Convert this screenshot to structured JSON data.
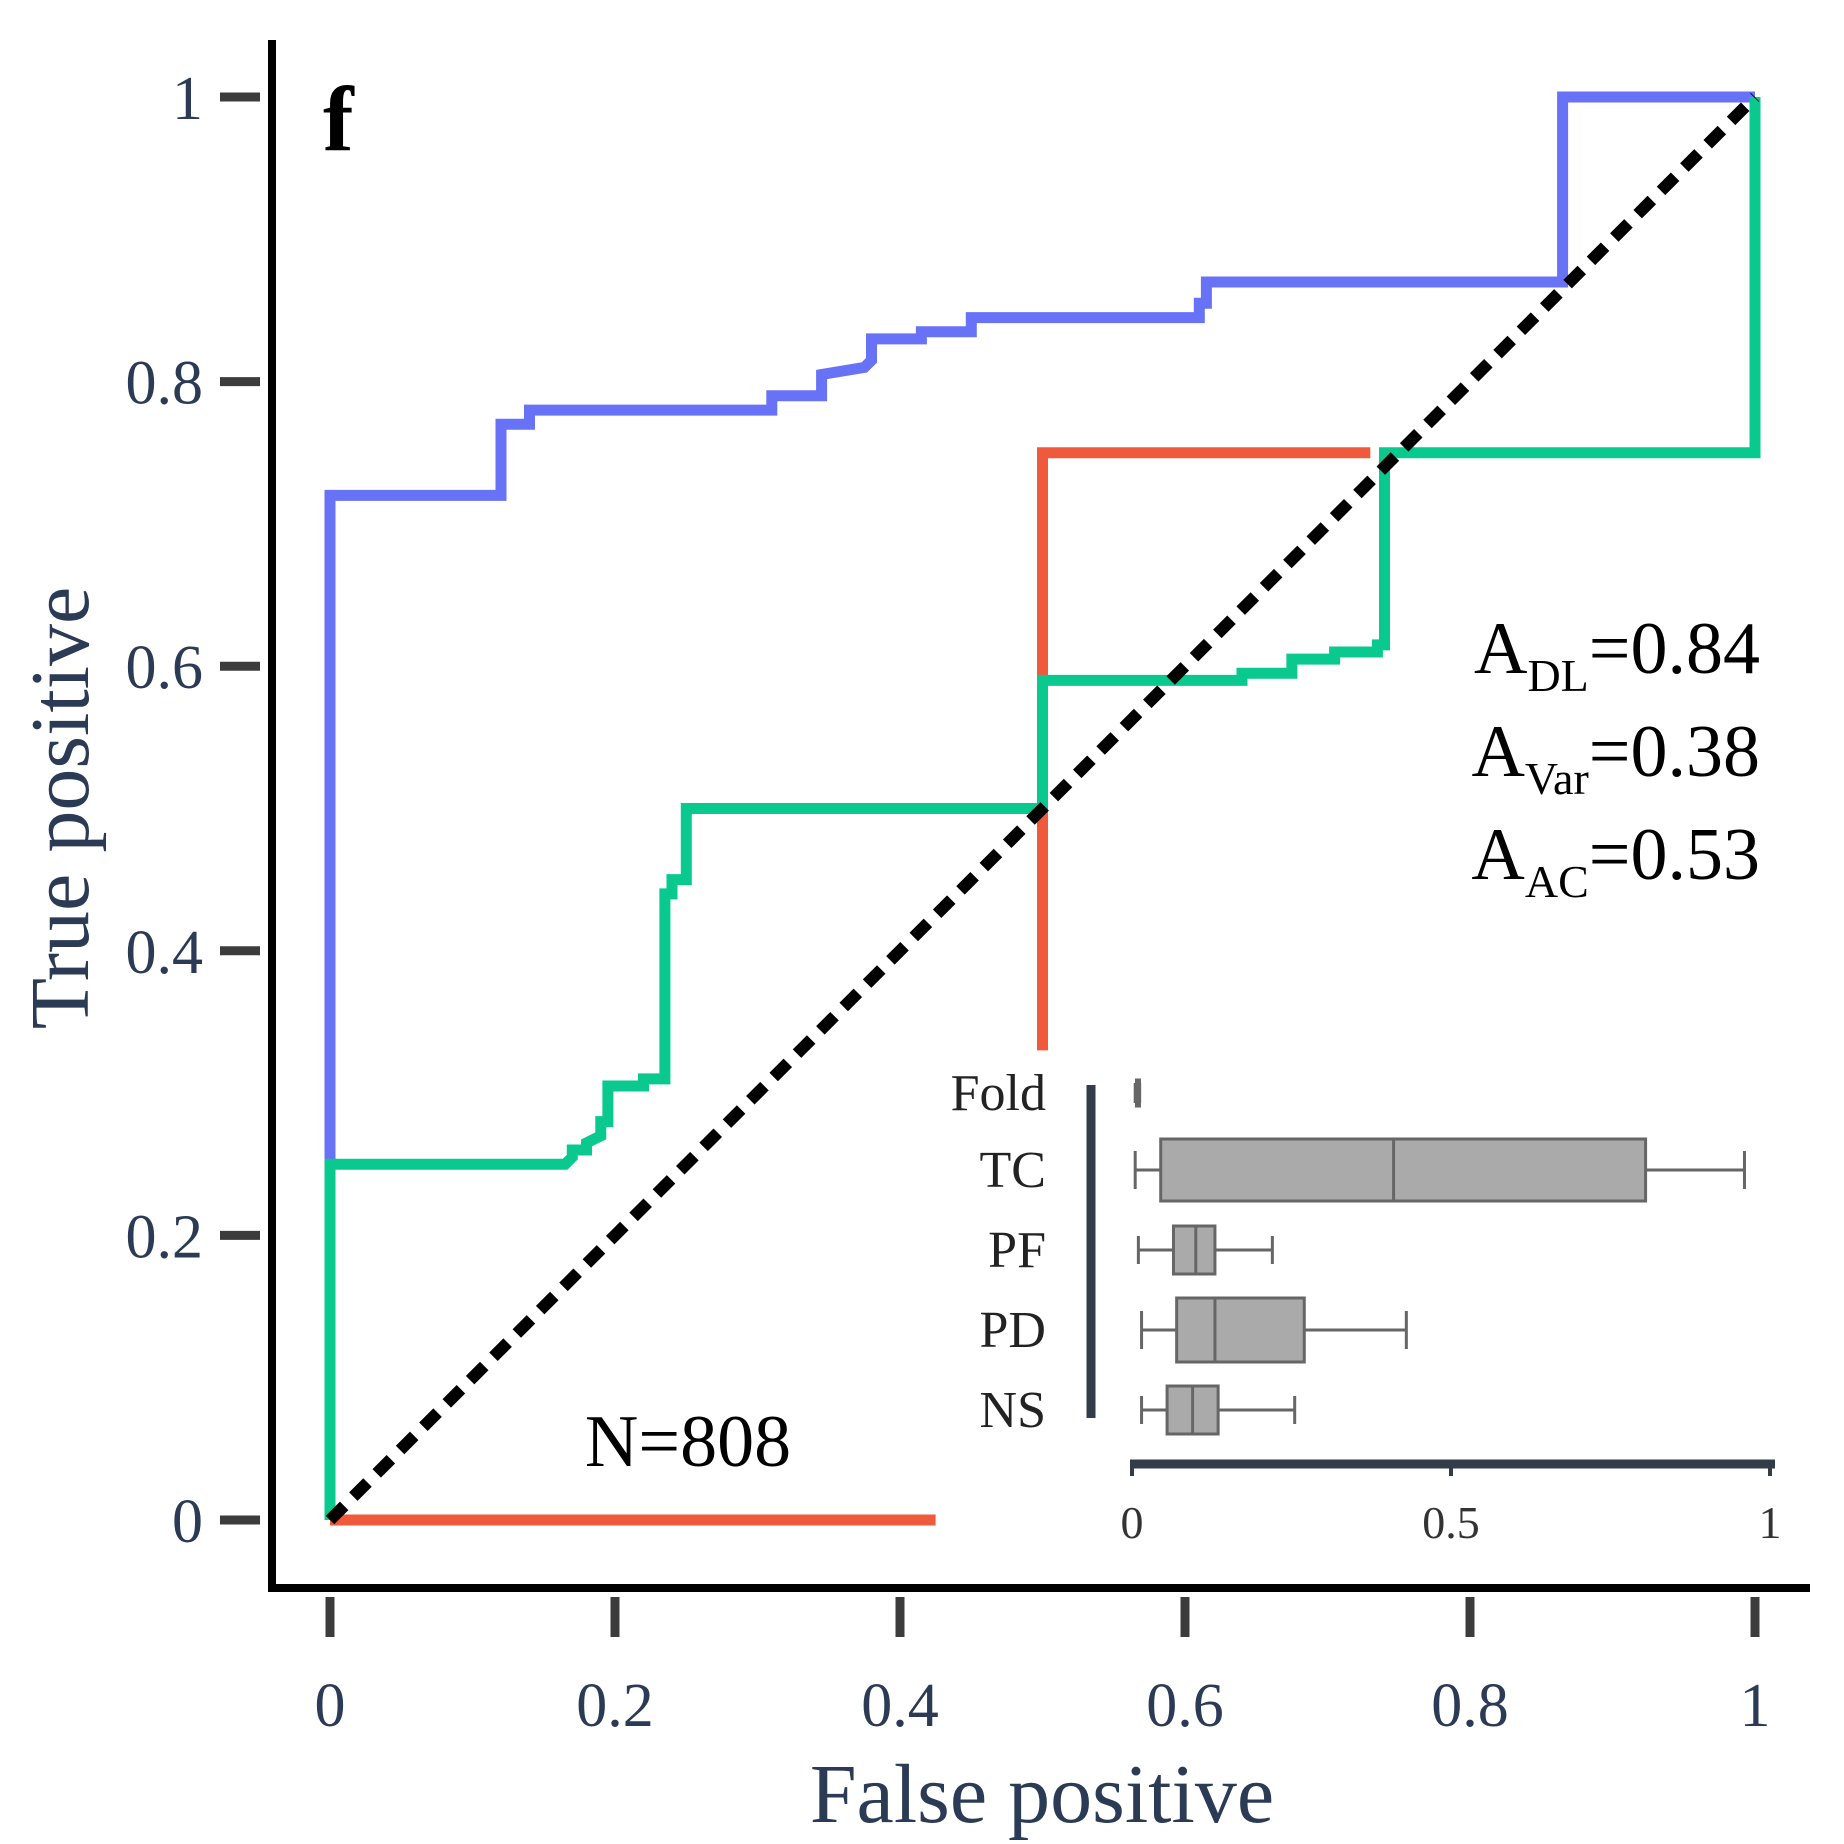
{
  "chart_data": [
    {
      "type": "line",
      "panel_label": "f",
      "xlabel": "False positive",
      "ylabel": "True positive",
      "xlim": [
        0,
        1
      ],
      "ylim": [
        0,
        1
      ],
      "x_ticks": [
        0,
        0.2,
        0.4,
        0.6,
        0.8,
        1
      ],
      "x_tick_labels": [
        "0",
        "0.2",
        "0.4",
        "0.6",
        "0.8",
        "1"
      ],
      "y_ticks": [
        0,
        0.2,
        0.4,
        0.6,
        0.8,
        1
      ],
      "y_tick_labels": [
        "0",
        "0.2",
        "0.4",
        "0.6",
        "0.8",
        "1"
      ],
      "grid": false,
      "series": [
        {
          "color": "#6872f6",
          "x": [
            0,
            0,
            0.12,
            0.12,
            0.14,
            0.14,
            0.31,
            0.31,
            0.345,
            0.345,
            0.375,
            0.38,
            0.38,
            0.415,
            0.415,
            0.45,
            0.45,
            0.61,
            0.61,
            0.615,
            0.615,
            0.865,
            0.865,
            1
          ],
          "y": [
            0.25,
            0.72,
            0.72,
            0.77,
            0.77,
            0.78,
            0.78,
            0.79,
            0.79,
            0.805,
            0.81,
            0.815,
            0.83,
            0.83,
            0.835,
            0.835,
            0.845,
            0.845,
            0.855,
            0.855,
            0.87,
            0.87,
            1,
            1
          ]
        },
        {
          "color": "#f05a3c",
          "x": [
            0,
            0.425,
            null,
            0.5,
            0.5,
            0.73
          ],
          "y": [
            0,
            0,
            null,
            0.33,
            0.75,
            0.75
          ]
        },
        {
          "color": "#09c98f",
          "x": [
            0,
            0,
            0.165,
            0.17,
            0.17,
            0.18,
            0.18,
            0.19,
            0.19,
            0.195,
            0.195,
            0.22,
            0.22,
            0.235,
            0.235,
            0.24,
            0.24,
            0.25,
            0.25,
            0.5,
            0.5,
            0.64,
            0.64,
            0.675,
            0.675,
            0.705,
            0.705,
            0.735,
            0.735,
            0.74,
            0.74,
            1,
            1
          ],
          "y": [
            0,
            0.25,
            0.25,
            0.255,
            0.26,
            0.26,
            0.265,
            0.27,
            0.28,
            0.28,
            0.305,
            0.305,
            0.31,
            0.31,
            0.44,
            0.44,
            0.45,
            0.45,
            0.5,
            0.5,
            0.59,
            0.59,
            0.595,
            0.595,
            0.605,
            0.605,
            0.61,
            0.61,
            0.615,
            0.615,
            0.75,
            0.75,
            1
          ]
        }
      ],
      "diagonal": {
        "x": [
          0,
          1
        ],
        "y": [
          0,
          1
        ],
        "color": "#000000",
        "style": "dashed"
      },
      "annotations": {
        "auc": [
          {
            "base": "A",
            "sub": "DL",
            "text": "=0.84"
          },
          {
            "base": "A",
            "sub": "Var",
            "text": "=0.38"
          },
          {
            "base": "A",
            "sub": "AC",
            "text": "=0.53"
          }
        ],
        "n": "N=808"
      }
    },
    {
      "type": "box",
      "orientation": "horizontal",
      "xlim": [
        0,
        1
      ],
      "x_ticks": [
        0,
        0.5,
        1
      ],
      "x_tick_labels": [
        "0",
        "0.5",
        "1"
      ],
      "box_color": "#aaaaaa",
      "edge_color": "#666666",
      "categories": [
        "Fold",
        "TC",
        "PF",
        "PD",
        "NS"
      ],
      "boxes": [
        {
          "whislo": 0.005,
          "q1": 0.007,
          "med": 0.009,
          "q3": 0.011,
          "whishi": 0.012
        },
        {
          "whislo": 0.005,
          "q1": 0.045,
          "med": 0.41,
          "q3": 0.805,
          "whishi": 0.96
        },
        {
          "whislo": 0.01,
          "q1": 0.065,
          "med": 0.1,
          "q3": 0.13,
          "whishi": 0.22
        },
        {
          "whislo": 0.015,
          "q1": 0.07,
          "med": 0.13,
          "q3": 0.27,
          "whishi": 0.43
        },
        {
          "whislo": 0.015,
          "q1": 0.055,
          "med": 0.095,
          "q3": 0.135,
          "whishi": 0.255
        }
      ]
    }
  ]
}
